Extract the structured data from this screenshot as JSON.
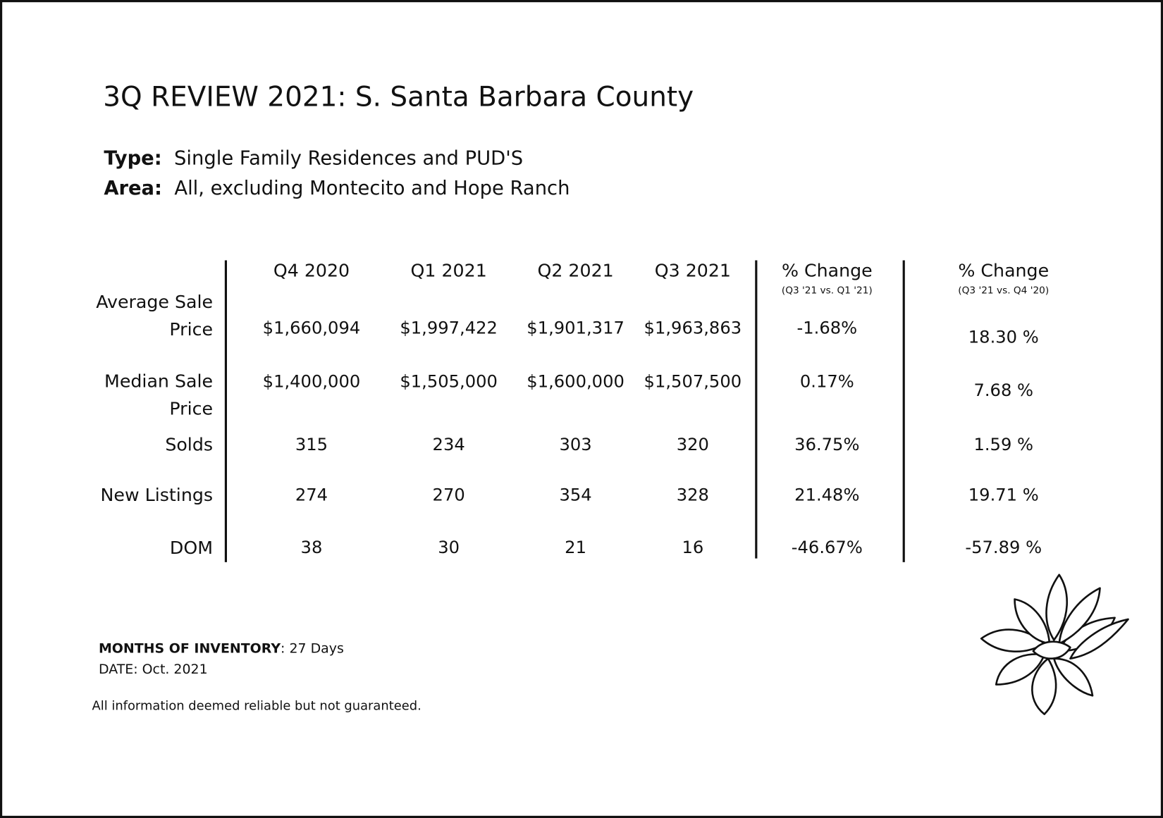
{
  "header": {
    "title": "3Q REVIEW 2021: S. Santa Barbara County",
    "type_label": "Type:",
    "type_value": "Single Family Residences and PUD'S",
    "area_label": "Area:",
    "area_value": "All, excluding Montecito and Hope Ranch"
  },
  "table": {
    "columns": [
      {
        "title": "Q4 2020"
      },
      {
        "title": "Q1 2021"
      },
      {
        "title": "Q2 2021"
      },
      {
        "title": "Q3 2021"
      },
      {
        "title": "% Change",
        "subtitle": "(Q3 '21 vs. Q1 '21)"
      },
      {
        "title": "% Change",
        "subtitle": "(Q3 '21 vs. Q4 '20)"
      }
    ],
    "rows": [
      {
        "label": "Average Sale Price",
        "cells": [
          "$1,660,094",
          "$1,997,422",
          "$1,901,317",
          "$1,963,863",
          "-1.68%",
          "18.30 %"
        ]
      },
      {
        "label": "Median Sale Price",
        "cells": [
          "$1,400,000",
          "$1,505,000",
          "$1,600,000",
          "$1,507,500",
          "0.17%",
          "7.68 %"
        ]
      },
      {
        "label": "Solds",
        "cells": [
          "315",
          "234",
          "303",
          "320",
          "36.75%",
          "1.59 %"
        ]
      },
      {
        "label": "New Listings",
        "cells": [
          "274",
          "270",
          "354",
          "328",
          "21.48%",
          "19.71 %"
        ]
      },
      {
        "label": "DOM",
        "cells": [
          "38",
          "30",
          "21",
          "16",
          "-46.67%",
          "-57.89 %"
        ]
      }
    ]
  },
  "footer": {
    "inventory_label": "MONTHS OF INVENTORY",
    "inventory_value": ": 27 Days",
    "date": "DATE: Oct. 2021",
    "disclaimer": "All information deemed reliable but not guaranteed."
  }
}
